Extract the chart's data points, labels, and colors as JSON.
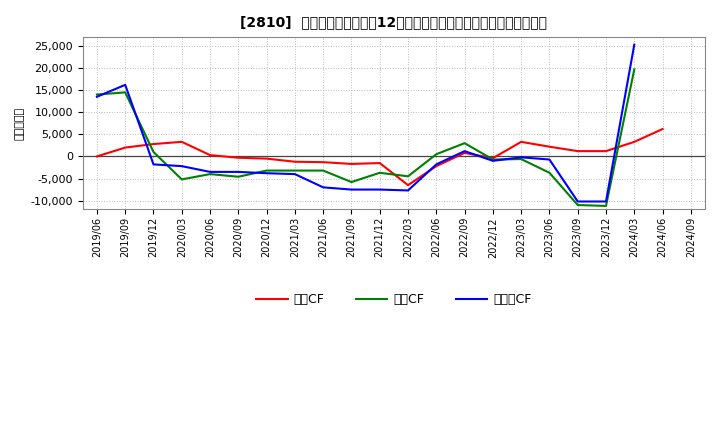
{
  "title": "[2810]  キャッシュフローの12か月移動合計の対前年同期増減額の推移",
  "ylabel": "（百万円）",
  "background_color": "#ffffff",
  "plot_bg_color": "#ffffff",
  "grid_color": "#bbbbbb",
  "ylim": [
    -12000,
    27000
  ],
  "yticks": [
    -10000,
    -5000,
    0,
    5000,
    10000,
    15000,
    20000,
    25000
  ],
  "dates": [
    "2019/06",
    "2019/09",
    "2019/12",
    "2020/03",
    "2020/06",
    "2020/09",
    "2020/12",
    "2021/03",
    "2021/06",
    "2021/09",
    "2021/12",
    "2022/03",
    "2022/06",
    "2022/09",
    "2022/12",
    "2023/03",
    "2023/06",
    "2023/09",
    "2023/12",
    "2024/03",
    "2024/06",
    "2024/09"
  ],
  "eigyo_cf": [
    0,
    2000,
    2800,
    3300,
    300,
    -300,
    -500,
    -1200,
    -1300,
    -1700,
    -1500,
    -6500,
    -2200,
    800,
    -400,
    3300,
    2200,
    1200,
    1200,
    3300,
    6200,
    null
  ],
  "toshi_cf": [
    14000,
    14500,
    1000,
    -5200,
    -4000,
    -4600,
    -3200,
    -3200,
    -3200,
    -5800,
    -3700,
    -4500,
    500,
    3000,
    -700,
    -600,
    -3700,
    -11000,
    -11200,
    19700,
    null,
    null
  ],
  "free_cf": [
    13500,
    16200,
    -1800,
    -2200,
    -3500,
    -3500,
    -3800,
    -4000,
    -7000,
    -7500,
    -7500,
    -7700,
    -1800,
    1200,
    -1000,
    -200,
    -700,
    -10200,
    -10200,
    25300,
    null,
    null
  ],
  "eigyo_color": "#ff0000",
  "toshi_color": "#008000",
  "free_color": "#0000ff",
  "legend_labels": [
    "営業CF",
    "投資CF",
    "フリーCF"
  ]
}
